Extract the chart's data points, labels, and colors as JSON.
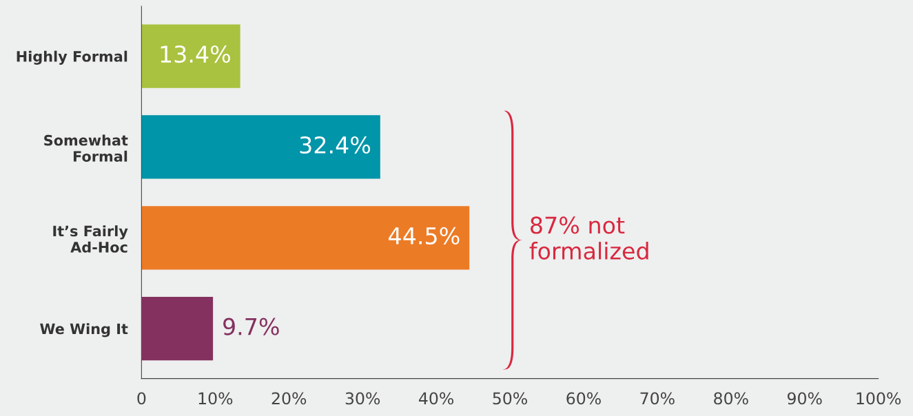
{
  "chart_data": {
    "type": "bar",
    "orientation": "horizontal",
    "categories": [
      "Highly Formal",
      "Somewhat\nFormal",
      "It’s Fairly\nAd-Hoc",
      "We Wing It"
    ],
    "values": [
      13.4,
      32.4,
      44.5,
      9.7
    ],
    "colors": [
      "#a9c23f",
      "#0095a9",
      "#ec7b26",
      "#84315f"
    ],
    "value_labels": [
      "13.4%",
      "32.4%",
      "44.5%",
      "9.7%"
    ],
    "xlim": [
      0,
      100
    ],
    "xticks": [
      0,
      {
        "value": 10,
        "label": "10%"
      },
      {
        "value": 20,
        "label": "20%"
      },
      {
        "value": 30,
        "label": "30%"
      },
      {
        "value": 40,
        "label": "40%"
      },
      {
        "value": 50,
        "label": "50%"
      },
      {
        "value": 60,
        "label": "60%"
      },
      {
        "value": 70,
        "label": "70%"
      },
      {
        "value": 80,
        "label": "80%"
      },
      {
        "value": 90,
        "label": "90%"
      },
      {
        "value": 100,
        "label": "100%"
      }
    ],
    "annotations": [
      "87% not\nformalized"
    ],
    "grid": false
  }
}
